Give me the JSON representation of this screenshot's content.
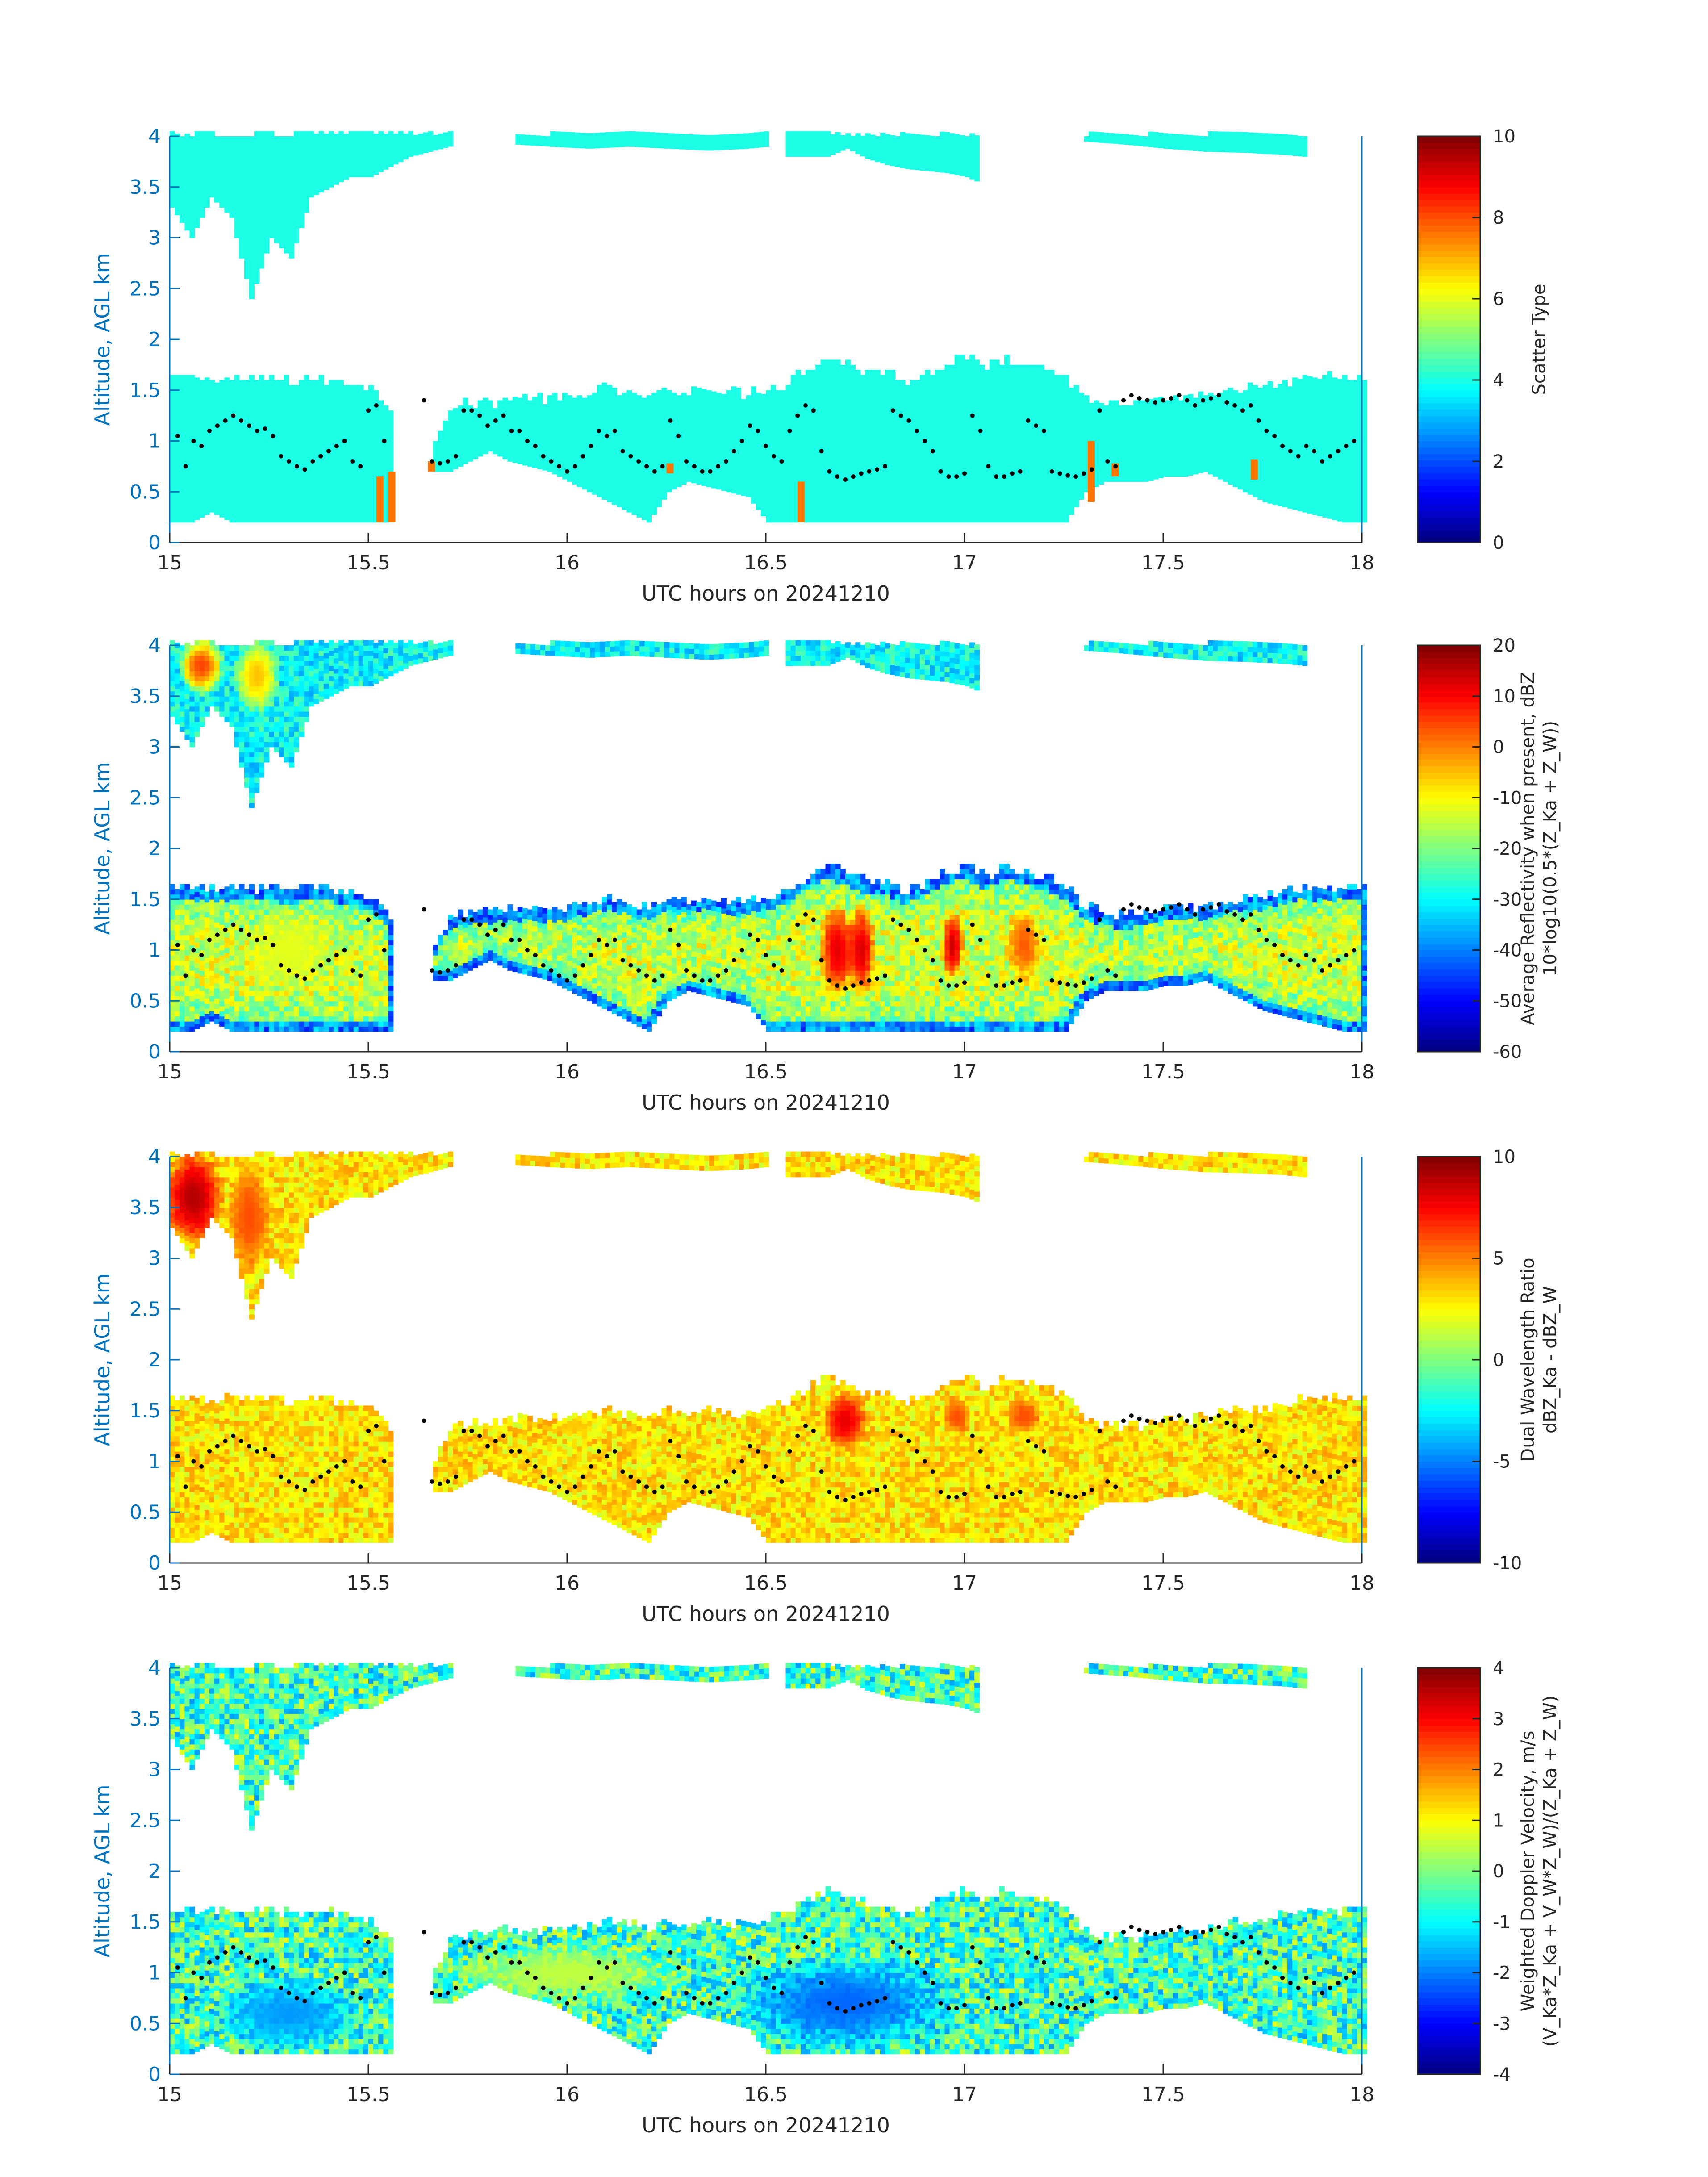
{
  "chart_data": [
    {
      "type": "heatmap",
      "panel": "scatter-type",
      "xlabel": "UTC hours on 20241210",
      "ylabel": "Altitude, AGL km",
      "xlim": [
        15,
        18
      ],
      "ylim": [
        0,
        4
      ],
      "x_ticks": [
        "15",
        "15.5",
        "16",
        "16.5",
        "17",
        "17.5",
        "18"
      ],
      "y_ticks": [
        "0",
        "0.5",
        "1",
        "1.5",
        "2",
        "2.5",
        "3",
        "3.5",
        "4"
      ],
      "colorbar": {
        "label_lines": [
          "Scatter Type"
        ],
        "range": [
          0,
          10
        ],
        "ticks": [
          "0",
          "2",
          "4",
          "6",
          "8",
          "10"
        ]
      },
      "cloud_value": 4.0,
      "special_value": 7.6,
      "special_columns": [
        {
          "x": 15.52,
          "from": 0.2,
          "to": 0.65
        },
        {
          "x": 15.55,
          "from": 0.2,
          "to": 0.7
        },
        {
          "x": 15.65,
          "from": 0.7,
          "to": 0.8
        },
        {
          "x": 16.25,
          "from": 0.68,
          "to": 0.78
        },
        {
          "x": 16.58,
          "from": 0.2,
          "to": 0.6
        },
        {
          "x": 17.31,
          "from": 0.4,
          "to": 1.0
        },
        {
          "x": 17.37,
          "from": 0.65,
          "to": 0.78
        },
        {
          "x": 17.72,
          "from": 0.62,
          "to": 0.82
        }
      ]
    },
    {
      "type": "heatmap",
      "panel": "reflectivity",
      "xlabel": "UTC hours on 20241210",
      "ylabel": "Altitude, AGL km",
      "xlim": [
        15,
        18
      ],
      "ylim": [
        0,
        4
      ],
      "x_ticks": [
        "15",
        "15.5",
        "16",
        "16.5",
        "17",
        "17.5",
        "18"
      ],
      "y_ticks": [
        "0",
        "0.5",
        "1",
        "1.5",
        "2",
        "2.5",
        "3",
        "3.5",
        "4"
      ],
      "colorbar": {
        "label_lines": [
          "Average Reflectivity when present, dBZ",
          "10*log10(0.5*(Z_Ka + Z_W))"
        ],
        "range": [
          -60,
          20
        ],
        "ticks": [
          "-60",
          "-50",
          "-40",
          "-30",
          "-20",
          "-10",
          "0",
          "10",
          "20"
        ]
      },
      "hotspots": [
        {
          "x": 16.68,
          "y": 1.0,
          "value": 12,
          "wx": 0.05,
          "wy": 0.5
        },
        {
          "x": 16.74,
          "y": 1.0,
          "value": 13,
          "wx": 0.04,
          "wy": 0.5
        },
        {
          "x": 16.97,
          "y": 1.05,
          "value": 14,
          "wx": 0.03,
          "wy": 0.35
        },
        {
          "x": 17.15,
          "y": 1.05,
          "value": 3,
          "wx": 0.05,
          "wy": 0.4
        },
        {
          "x": 15.3,
          "y": 1.0,
          "value": -12,
          "wx": 0.12,
          "wy": 0.4
        },
        {
          "x": 15.08,
          "y": 3.8,
          "value": 5,
          "wx": 0.06,
          "wy": 0.3
        },
        {
          "x": 15.22,
          "y": 3.7,
          "value": -5,
          "wx": 0.06,
          "wy": 0.4
        }
      ]
    },
    {
      "type": "heatmap",
      "panel": "dual-wavelength-ratio",
      "xlabel": "UTC hours on 20241210",
      "ylabel": "Altitude, AGL km",
      "xlim": [
        15,
        18
      ],
      "ylim": [
        0,
        4
      ],
      "x_ticks": [
        "15",
        "15.5",
        "16",
        "16.5",
        "17",
        "17.5",
        "18"
      ],
      "y_ticks": [
        "0",
        "0.5",
        "1",
        "1.5",
        "2",
        "2.5",
        "3",
        "3.5",
        "4"
      ],
      "colorbar": {
        "label_lines": [
          "Dual Wavelength Ratio",
          "dBZ_Ka - dBZ_W"
        ],
        "range": [
          -10,
          10
        ],
        "ticks": [
          "-10",
          "-5",
          "0",
          "5",
          "10"
        ]
      },
      "typical_value": 3,
      "hotspots": [
        {
          "x": 15.06,
          "y": 3.6,
          "value": 9,
          "wx": 0.08,
          "wy": 0.5
        },
        {
          "x": 15.2,
          "y": 3.4,
          "value": 6,
          "wx": 0.06,
          "wy": 0.6
        },
        {
          "x": 16.7,
          "y": 1.4,
          "value": 8,
          "wx": 0.06,
          "wy": 0.3
        },
        {
          "x": 16.98,
          "y": 1.45,
          "value": 6,
          "wx": 0.04,
          "wy": 0.2
        },
        {
          "x": 17.15,
          "y": 1.45,
          "value": 6,
          "wx": 0.05,
          "wy": 0.2
        }
      ]
    },
    {
      "type": "heatmap",
      "panel": "doppler-velocity",
      "xlabel": "UTC hours on 20241210",
      "ylabel": "Altitude, AGL km",
      "xlim": [
        15,
        18
      ],
      "ylim": [
        0,
        4
      ],
      "x_ticks": [
        "15",
        "15.5",
        "16",
        "16.5",
        "17",
        "17.5",
        "18"
      ],
      "y_ticks": [
        "0",
        "0.5",
        "1",
        "1.5",
        "2",
        "2.5",
        "3",
        "3.5",
        "4"
      ],
      "colorbar": {
        "label_lines": [
          "Weighted Doppler Velocity, m/s",
          "(V_Ka*Z_Ka + V_W*Z_W)/(Z_Ka + Z_W)"
        ],
        "range": [
          -4,
          4
        ],
        "ticks": [
          "-4",
          "-3",
          "-2",
          "-1",
          "0",
          "1",
          "2",
          "3",
          "4"
        ]
      },
      "typical_value": -0.5,
      "hotspots": [
        {
          "x": 15.3,
          "y": 0.6,
          "value": -1.8,
          "wx": 0.2,
          "wy": 0.4
        },
        {
          "x": 16.7,
          "y": 0.7,
          "value": -2.2,
          "wx": 0.3,
          "wy": 0.5
        },
        {
          "x": 16.0,
          "y": 1.0,
          "value": 0.5,
          "wx": 0.3,
          "wy": 0.3
        }
      ]
    }
  ],
  "cloud_layers": {
    "upper": {
      "x": [
        15.0,
        15.05,
        15.1,
        15.15,
        15.2,
        15.25,
        15.3,
        15.35,
        15.4,
        15.45,
        15.5,
        15.55,
        15.6,
        15.65,
        15.7
      ],
      "base": [
        3.3,
        3.0,
        3.4,
        3.2,
        2.4,
        3.0,
        2.8,
        3.4,
        3.5,
        3.6,
        3.6,
        3.7,
        3.8,
        3.85,
        3.9
      ]
    },
    "upper_mid": {
      "x": [
        15.87,
        15.95,
        16.05,
        16.15,
        16.25,
        16.35,
        16.45,
        16.5
      ],
      "base": [
        3.92,
        3.9,
        3.88,
        3.9,
        3.88,
        3.86,
        3.88,
        3.9
      ]
    },
    "upper_b": {
      "x": [
        16.55,
        16.6,
        16.65,
        16.7,
        16.75,
        16.8,
        16.85,
        16.9,
        16.95,
        17.0,
        17.03
      ],
      "base": [
        3.8,
        3.8,
        3.8,
        3.88,
        3.78,
        3.72,
        3.68,
        3.66,
        3.64,
        3.6,
        3.55
      ]
    },
    "upper_c": {
      "x": [
        17.3,
        17.4,
        17.5,
        17.6,
        17.7,
        17.8,
        17.85
      ],
      "base": [
        3.95,
        3.92,
        3.88,
        3.85,
        3.84,
        3.82,
        3.8
      ]
    },
    "lower": {
      "x": [
        15.0,
        15.05,
        15.1,
        15.15,
        15.2,
        15.25,
        15.3,
        15.35,
        15.4,
        15.45,
        15.5,
        15.55,
        15.6,
        15.65,
        15.7,
        15.75,
        15.8,
        15.85,
        15.9,
        15.95,
        16.0,
        16.05,
        16.1,
        16.15,
        16.2,
        16.25,
        16.3,
        16.35,
        16.4,
        16.45,
        16.5,
        16.55,
        16.6,
        16.65,
        16.7,
        16.75,
        16.8,
        16.85,
        16.9,
        16.95,
        17.0,
        17.05,
        17.1,
        17.15,
        17.2,
        17.25,
        17.3,
        17.35,
        17.4,
        17.45,
        17.5,
        17.55,
        17.6,
        17.65,
        17.7,
        17.75,
        17.8,
        17.85,
        17.9,
        17.95,
        18.0
      ],
      "top": [
        1.6,
        1.6,
        1.58,
        1.6,
        1.58,
        1.6,
        1.55,
        1.6,
        1.58,
        1.55,
        1.5,
        1.3,
        null,
        0.9,
        1.3,
        1.35,
        1.35,
        1.4,
        1.4,
        1.38,
        1.4,
        1.45,
        1.5,
        1.45,
        1.4,
        1.5,
        1.45,
        1.5,
        1.45,
        1.45,
        1.5,
        1.55,
        1.7,
        1.8,
        1.75,
        1.65,
        1.65,
        1.55,
        1.65,
        1.75,
        1.8,
        1.7,
        1.8,
        1.75,
        1.7,
        1.6,
        1.4,
        1.35,
        1.3,
        1.35,
        1.4,
        1.4,
        1.4,
        1.45,
        1.5,
        1.5,
        1.55,
        1.6,
        1.6,
        1.6,
        1.6
      ],
      "base": [
        0.2,
        0.2,
        0.3,
        0.2,
        0.2,
        0.2,
        0.2,
        0.2,
        0.2,
        0.2,
        0.2,
        0.2,
        null,
        0.7,
        0.7,
        0.8,
        0.9,
        0.8,
        0.75,
        0.7,
        0.6,
        0.5,
        0.4,
        0.3,
        0.2,
        0.5,
        0.6,
        0.55,
        0.5,
        0.45,
        0.2,
        0.2,
        0.2,
        0.2,
        0.2,
        0.2,
        0.2,
        0.2,
        0.2,
        0.2,
        0.2,
        0.2,
        0.2,
        0.2,
        0.2,
        0.2,
        0.5,
        0.6,
        0.6,
        0.6,
        0.65,
        0.65,
        0.7,
        0.6,
        0.5,
        0.4,
        0.35,
        0.3,
        0.25,
        0.2,
        0.2
      ]
    }
  },
  "trace_points": {
    "x": [
      15.02,
      15.04,
      15.06,
      15.08,
      15.1,
      15.12,
      15.14,
      15.16,
      15.18,
      15.2,
      15.22,
      15.24,
      15.26,
      15.28,
      15.3,
      15.32,
      15.34,
      15.36,
      15.38,
      15.4,
      15.42,
      15.44,
      15.46,
      15.48,
      15.5,
      15.52,
      15.54,
      15.64,
      15.66,
      15.68,
      15.7,
      15.72,
      15.74,
      15.76,
      15.78,
      15.8,
      15.82,
      15.84,
      15.86,
      15.88,
      15.9,
      15.92,
      15.94,
      15.96,
      15.98,
      16.0,
      16.02,
      16.04,
      16.06,
      16.08,
      16.1,
      16.12,
      16.14,
      16.16,
      16.18,
      16.2,
      16.22,
      16.24,
      16.26,
      16.28,
      16.3,
      16.32,
      16.34,
      16.36,
      16.38,
      16.4,
      16.42,
      16.44,
      16.46,
      16.48,
      16.5,
      16.52,
      16.54,
      16.56,
      16.58,
      16.6,
      16.62,
      16.64,
      16.66,
      16.68,
      16.7,
      16.72,
      16.74,
      16.76,
      16.78,
      16.8,
      16.82,
      16.84,
      16.86,
      16.88,
      16.9,
      16.92,
      16.94,
      16.96,
      16.98,
      17.0,
      17.02,
      17.04,
      17.06,
      17.08,
      17.1,
      17.12,
      17.14,
      17.16,
      17.18,
      17.2,
      17.22,
      17.24,
      17.26,
      17.28,
      17.3,
      17.32,
      17.34,
      17.36,
      17.38,
      17.4,
      17.42,
      17.44,
      17.46,
      17.48,
      17.5,
      17.52,
      17.54,
      17.56,
      17.58,
      17.6,
      17.62,
      17.64,
      17.66,
      17.68,
      17.7,
      17.72,
      17.74,
      17.76,
      17.78,
      17.8,
      17.82,
      17.84,
      17.86,
      17.88,
      17.9,
      17.92,
      17.94,
      17.96,
      17.98
    ],
    "y": [
      1.05,
      0.75,
      1.0,
      0.95,
      1.1,
      1.15,
      1.2,
      1.25,
      1.2,
      1.15,
      1.1,
      1.12,
      1.05,
      0.85,
      0.8,
      0.75,
      0.72,
      0.8,
      0.85,
      0.9,
      0.95,
      1.0,
      0.8,
      0.75,
      1.3,
      1.35,
      1.0,
      1.4,
      0.8,
      0.78,
      0.8,
      0.85,
      1.3,
      1.3,
      1.25,
      1.15,
      1.2,
      1.25,
      1.1,
      1.1,
      1.0,
      0.95,
      0.85,
      0.8,
      0.75,
      0.7,
      0.75,
      0.85,
      0.95,
      1.1,
      1.05,
      1.1,
      0.9,
      0.85,
      0.8,
      0.75,
      0.7,
      0.75,
      1.2,
      1.05,
      0.8,
      0.75,
      0.7,
      0.7,
      0.75,
      0.8,
      0.9,
      1.0,
      1.15,
      1.1,
      0.95,
      0.85,
      0.8,
      1.1,
      1.25,
      1.35,
      1.3,
      0.9,
      0.7,
      0.65,
      0.62,
      0.65,
      0.68,
      0.7,
      0.72,
      0.75,
      1.3,
      1.25,
      1.2,
      1.1,
      1.0,
      0.9,
      0.7,
      0.65,
      0.65,
      0.68,
      1.25,
      1.1,
      0.75,
      0.65,
      0.65,
      0.68,
      0.7,
      1.2,
      1.15,
      1.1,
      0.7,
      0.68,
      0.66,
      0.65,
      0.68,
      0.72,
      1.3,
      0.8,
      0.75,
      1.4,
      1.45,
      1.42,
      1.4,
      1.38,
      1.4,
      1.42,
      1.45,
      1.4,
      1.35,
      1.4,
      1.42,
      1.45,
      1.38,
      1.35,
      1.3,
      1.35,
      1.2,
      1.1,
      1.05,
      0.95,
      0.9,
      0.85,
      0.95,
      0.9,
      0.8,
      0.85,
      0.9,
      0.95,
      1.0
    ]
  }
}
